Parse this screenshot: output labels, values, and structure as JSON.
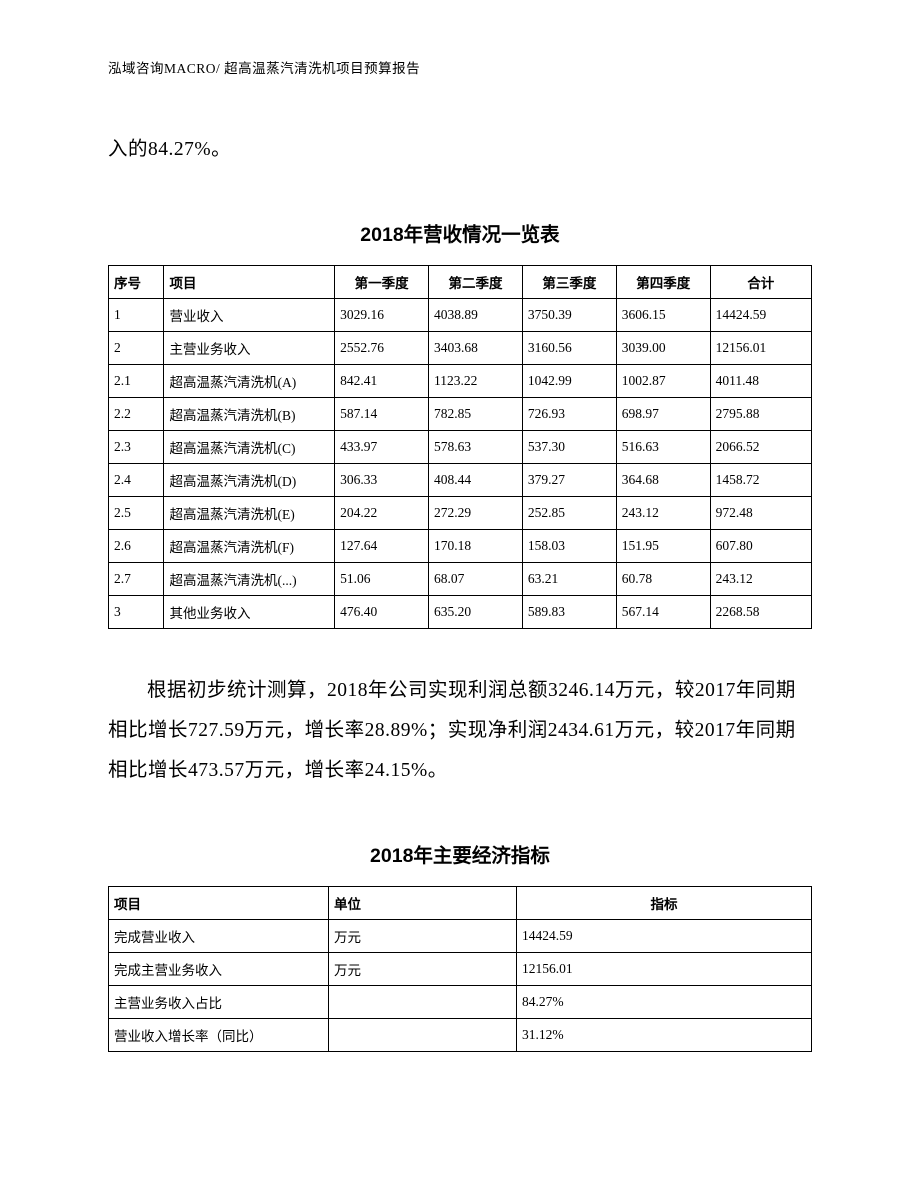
{
  "header": {
    "text": "泓域咨询MACRO/   超高温蒸汽清洗机项目预算报告"
  },
  "intro_fragment": "入的84.27%。",
  "table1": {
    "title": "2018年营收情况一览表",
    "columns": {
      "seq": "序号",
      "item": "项目",
      "q1": "第一季度",
      "q2": "第二季度",
      "q3": "第三季度",
      "q4": "第四季度",
      "total": "合计"
    },
    "rows": [
      {
        "seq": "1",
        "item": "营业收入",
        "q1": "3029.16",
        "q2": "4038.89",
        "q3": "3750.39",
        "q4": "3606.15",
        "total": "14424.59"
      },
      {
        "seq": "2",
        "item": "主营业务收入",
        "q1": "2552.76",
        "q2": "3403.68",
        "q3": "3160.56",
        "q4": "3039.00",
        "total": "12156.01"
      },
      {
        "seq": "2.1",
        "item": "超高温蒸汽清洗机(A)",
        "q1": "842.41",
        "q2": "1123.22",
        "q3": "1042.99",
        "q4": "1002.87",
        "total": "4011.48"
      },
      {
        "seq": "2.2",
        "item": "超高温蒸汽清洗机(B)",
        "q1": "587.14",
        "q2": "782.85",
        "q3": "726.93",
        "q4": "698.97",
        "total": "2795.88"
      },
      {
        "seq": "2.3",
        "item": "超高温蒸汽清洗机(C)",
        "q1": "433.97",
        "q2": "578.63",
        "q3": "537.30",
        "q4": "516.63",
        "total": "2066.52"
      },
      {
        "seq": "2.4",
        "item": "超高温蒸汽清洗机(D)",
        "q1": "306.33",
        "q2": "408.44",
        "q3": "379.27",
        "q4": "364.68",
        "total": "1458.72"
      },
      {
        "seq": "2.5",
        "item": "超高温蒸汽清洗机(E)",
        "q1": "204.22",
        "q2": "272.29",
        "q3": "252.85",
        "q4": "243.12",
        "total": "972.48"
      },
      {
        "seq": "2.6",
        "item": "超高温蒸汽清洗机(F)",
        "q1": "127.64",
        "q2": "170.18",
        "q3": "158.03",
        "q4": "151.95",
        "total": "607.80"
      },
      {
        "seq": "2.7",
        "item": "超高温蒸汽清洗机(...)",
        "q1": "51.06",
        "q2": "68.07",
        "q3": "63.21",
        "q4": "60.78",
        "total": "243.12"
      },
      {
        "seq": "3",
        "item": "其他业务收入",
        "q1": "476.40",
        "q2": "635.20",
        "q3": "589.83",
        "q4": "567.14",
        "total": "2268.58"
      }
    ],
    "border_color": "#000000",
    "font_size": 13.5,
    "cell_padding": 6
  },
  "paragraph2": "根据初步统计测算，2018年公司实现利润总额3246.14万元，较2017年同期相比增长727.59万元，增长率28.89%；实现净利润2434.61万元，较2017年同期相比增长473.57万元，增长率24.15%。",
  "table2": {
    "title": "2018年主要经济指标",
    "columns": {
      "item": "项目",
      "unit": "单位",
      "indicator": "指标"
    },
    "rows": [
      {
        "item": "完成营业收入",
        "unit": "万元",
        "indicator": "14424.59"
      },
      {
        "item": "完成主营业务收入",
        "unit": "万元",
        "indicator": "12156.01"
      },
      {
        "item": "主营业务收入占比",
        "unit": "",
        "indicator": "84.27%"
      },
      {
        "item": "营业收入增长率（同比）",
        "unit": "",
        "indicator": "31.12%"
      }
    ],
    "border_color": "#000000",
    "font_size": 13.5,
    "cell_padding": 6
  },
  "styling": {
    "page_bg": "#ffffff",
    "text_color": "#000000",
    "body_font_size": 19.5,
    "header_font_size": 13.5
  }
}
